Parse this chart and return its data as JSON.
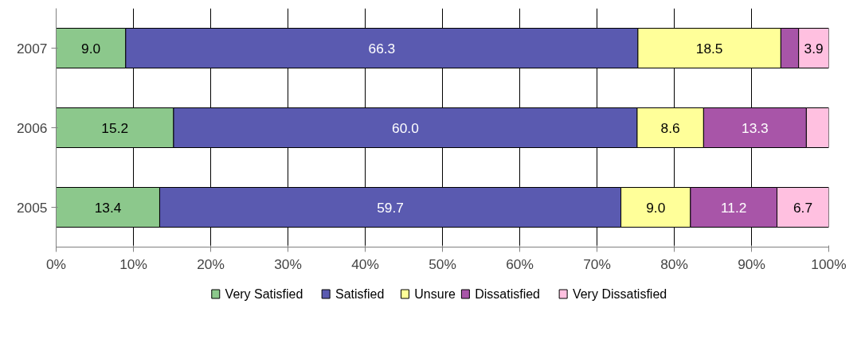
{
  "chart_data": {
    "type": "bar",
    "orientation": "horizontal",
    "stacked": true,
    "categories": [
      "2007",
      "2006",
      "2005"
    ],
    "series": [
      {
        "name": "Very Satisfied",
        "color": "#8cc88c",
        "values": [
          9.0,
          15.2,
          13.4
        ],
        "value_labels": [
          "9.0",
          "15.2",
          "13.4"
        ]
      },
      {
        "name": "Satisfied",
        "color": "#5a5ab0",
        "values": [
          66.3,
          60.0,
          59.7
        ],
        "value_labels": [
          "66.3",
          "60.0",
          "59.7"
        ]
      },
      {
        "name": "Unsure",
        "color": "#ffff99",
        "values": [
          18.5,
          8.6,
          9.0
        ],
        "value_labels": [
          "18.5",
          "8.6",
          "9.0"
        ]
      },
      {
        "name": "Dissatisfied",
        "color": "#a855a8",
        "values": [
          2.3,
          13.3,
          11.2
        ],
        "value_labels": [
          null,
          "13.3",
          "11.2"
        ]
      },
      {
        "name": "Very Dissatisfied",
        "color": "#ffc0e0",
        "values": [
          3.9,
          2.9,
          6.7
        ],
        "value_labels": [
          "3.9",
          null,
          "6.7"
        ]
      }
    ],
    "xlim": [
      0,
      100
    ],
    "xticks": [
      {
        "value": 0,
        "label": "0%"
      },
      {
        "value": 10,
        "label": "10%"
      },
      {
        "value": 20,
        "label": "20%"
      },
      {
        "value": 30,
        "label": "30%"
      },
      {
        "value": 40,
        "label": "40%"
      },
      {
        "value": 50,
        "label": "50%"
      },
      {
        "value": 60,
        "label": "60%"
      },
      {
        "value": 70,
        "label": "70%"
      },
      {
        "value": 80,
        "label": "80%"
      },
      {
        "value": 90,
        "label": "90%"
      },
      {
        "value": 100,
        "label": "100%"
      }
    ],
    "grid": "x",
    "legend": "bottom"
  }
}
